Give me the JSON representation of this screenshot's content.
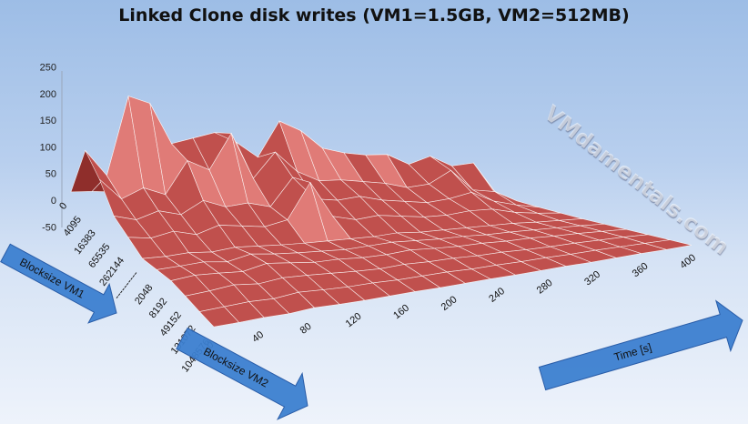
{
  "page": {
    "title": "Linked Clone disk writes (VM1=1.5GB, VM2=512MB)",
    "watermark": "VMdamentals.com"
  },
  "labels": {
    "vm1_arrow": "Blocksize VM1",
    "vm2_arrow": "Blocksize VM2",
    "time_arrow": "Time [s]"
  },
  "colors": {
    "surface": "#c0504d",
    "surface_light": "#e07b77",
    "surface_dark": "#8f2e2b",
    "mesh": "#ffffff",
    "arrow_fill": "#3c7fd0"
  },
  "chart_data": {
    "type": "surface",
    "title": "Linked Clone disk writes (VM1=1.5GB, VM2=512MB)",
    "z_axis": {
      "ticks": [
        -50,
        0,
        50,
        100,
        150,
        200,
        250
      ],
      "range": [
        -50,
        250
      ]
    },
    "depth_axis": {
      "label": "Blocksize VM1 / Blocksize VM2",
      "ticks": [
        "0",
        "4095",
        "16383",
        "65535",
        "262144",
        "----------",
        "2048",
        "8192",
        "49152",
        "131072",
        "1048576"
      ]
    },
    "x_axis": {
      "label": "Time [s]",
      "ticks": [
        0,
        40,
        80,
        120,
        160,
        200,
        240,
        280,
        320,
        360,
        400
      ],
      "range": [
        0,
        400
      ]
    },
    "rows": [
      {
        "name": "0",
        "values": [
          2,
          3,
          2,
          1,
          2,
          1,
          1,
          2,
          1,
          1,
          1,
          2,
          1,
          1,
          1,
          1,
          1,
          1,
          1,
          1
        ]
      },
      {
        "name": "4095",
        "values": [
          110,
          60,
          215,
          200,
          120,
          130,
          140,
          120,
          90,
          160,
          140,
          105,
          95,
          90,
          90,
          70,
          85,
          65,
          70,
          10
        ]
      },
      {
        "name": "16383",
        "values": [
          80,
          40,
          60,
          45,
          110,
          90,
          160,
          70,
          120,
          80,
          60,
          60,
          55,
          50,
          40,
          45,
          70,
          30,
          25,
          5
        ]
      },
      {
        "name": "65535",
        "values": [
          35,
          25,
          40,
          30,
          55,
          40,
          45,
          35,
          90,
          45,
          40,
          45,
          35,
          30,
          25,
          30,
          40,
          20,
          10,
          3
        ]
      },
      {
        "name": "262144",
        "values": [
          20,
          15,
          25,
          15,
          30,
          25,
          20,
          30,
          100,
          30,
          20,
          25,
          20,
          15,
          15,
          20,
          20,
          10,
          5,
          2
        ]
      },
      {
        "name": "----------",
        "values": [
          5,
          5,
          8,
          5,
          10,
          8,
          6,
          5,
          5,
          5,
          5,
          8,
          5,
          5,
          5,
          5,
          5,
          3,
          2,
          1
        ]
      },
      {
        "name": "2048",
        "values": [
          10,
          12,
          15,
          10,
          20,
          15,
          12,
          10,
          8,
          10,
          12,
          10,
          8,
          8,
          6,
          6,
          5,
          4,
          3,
          1
        ]
      },
      {
        "name": "8192",
        "values": [
          15,
          20,
          18,
          15,
          25,
          20,
          15,
          15,
          12,
          12,
          15,
          12,
          10,
          10,
          8,
          8,
          6,
          5,
          3,
          1
        ]
      },
      {
        "name": "49152",
        "values": [
          12,
          15,
          20,
          15,
          20,
          18,
          15,
          12,
          10,
          12,
          10,
          10,
          8,
          8,
          6,
          5,
          5,
          4,
          3,
          1
        ]
      },
      {
        "name": "131072",
        "values": [
          8,
          10,
          12,
          10,
          15,
          12,
          10,
          10,
          8,
          8,
          8,
          6,
          6,
          5,
          5,
          4,
          4,
          3,
          2,
          1
        ]
      },
      {
        "name": "1048576",
        "values": [
          5,
          5,
          6,
          5,
          8,
          6,
          5,
          5,
          5,
          4,
          4,
          4,
          3,
          3,
          3,
          2,
          2,
          2,
          1,
          1
        ]
      }
    ]
  }
}
